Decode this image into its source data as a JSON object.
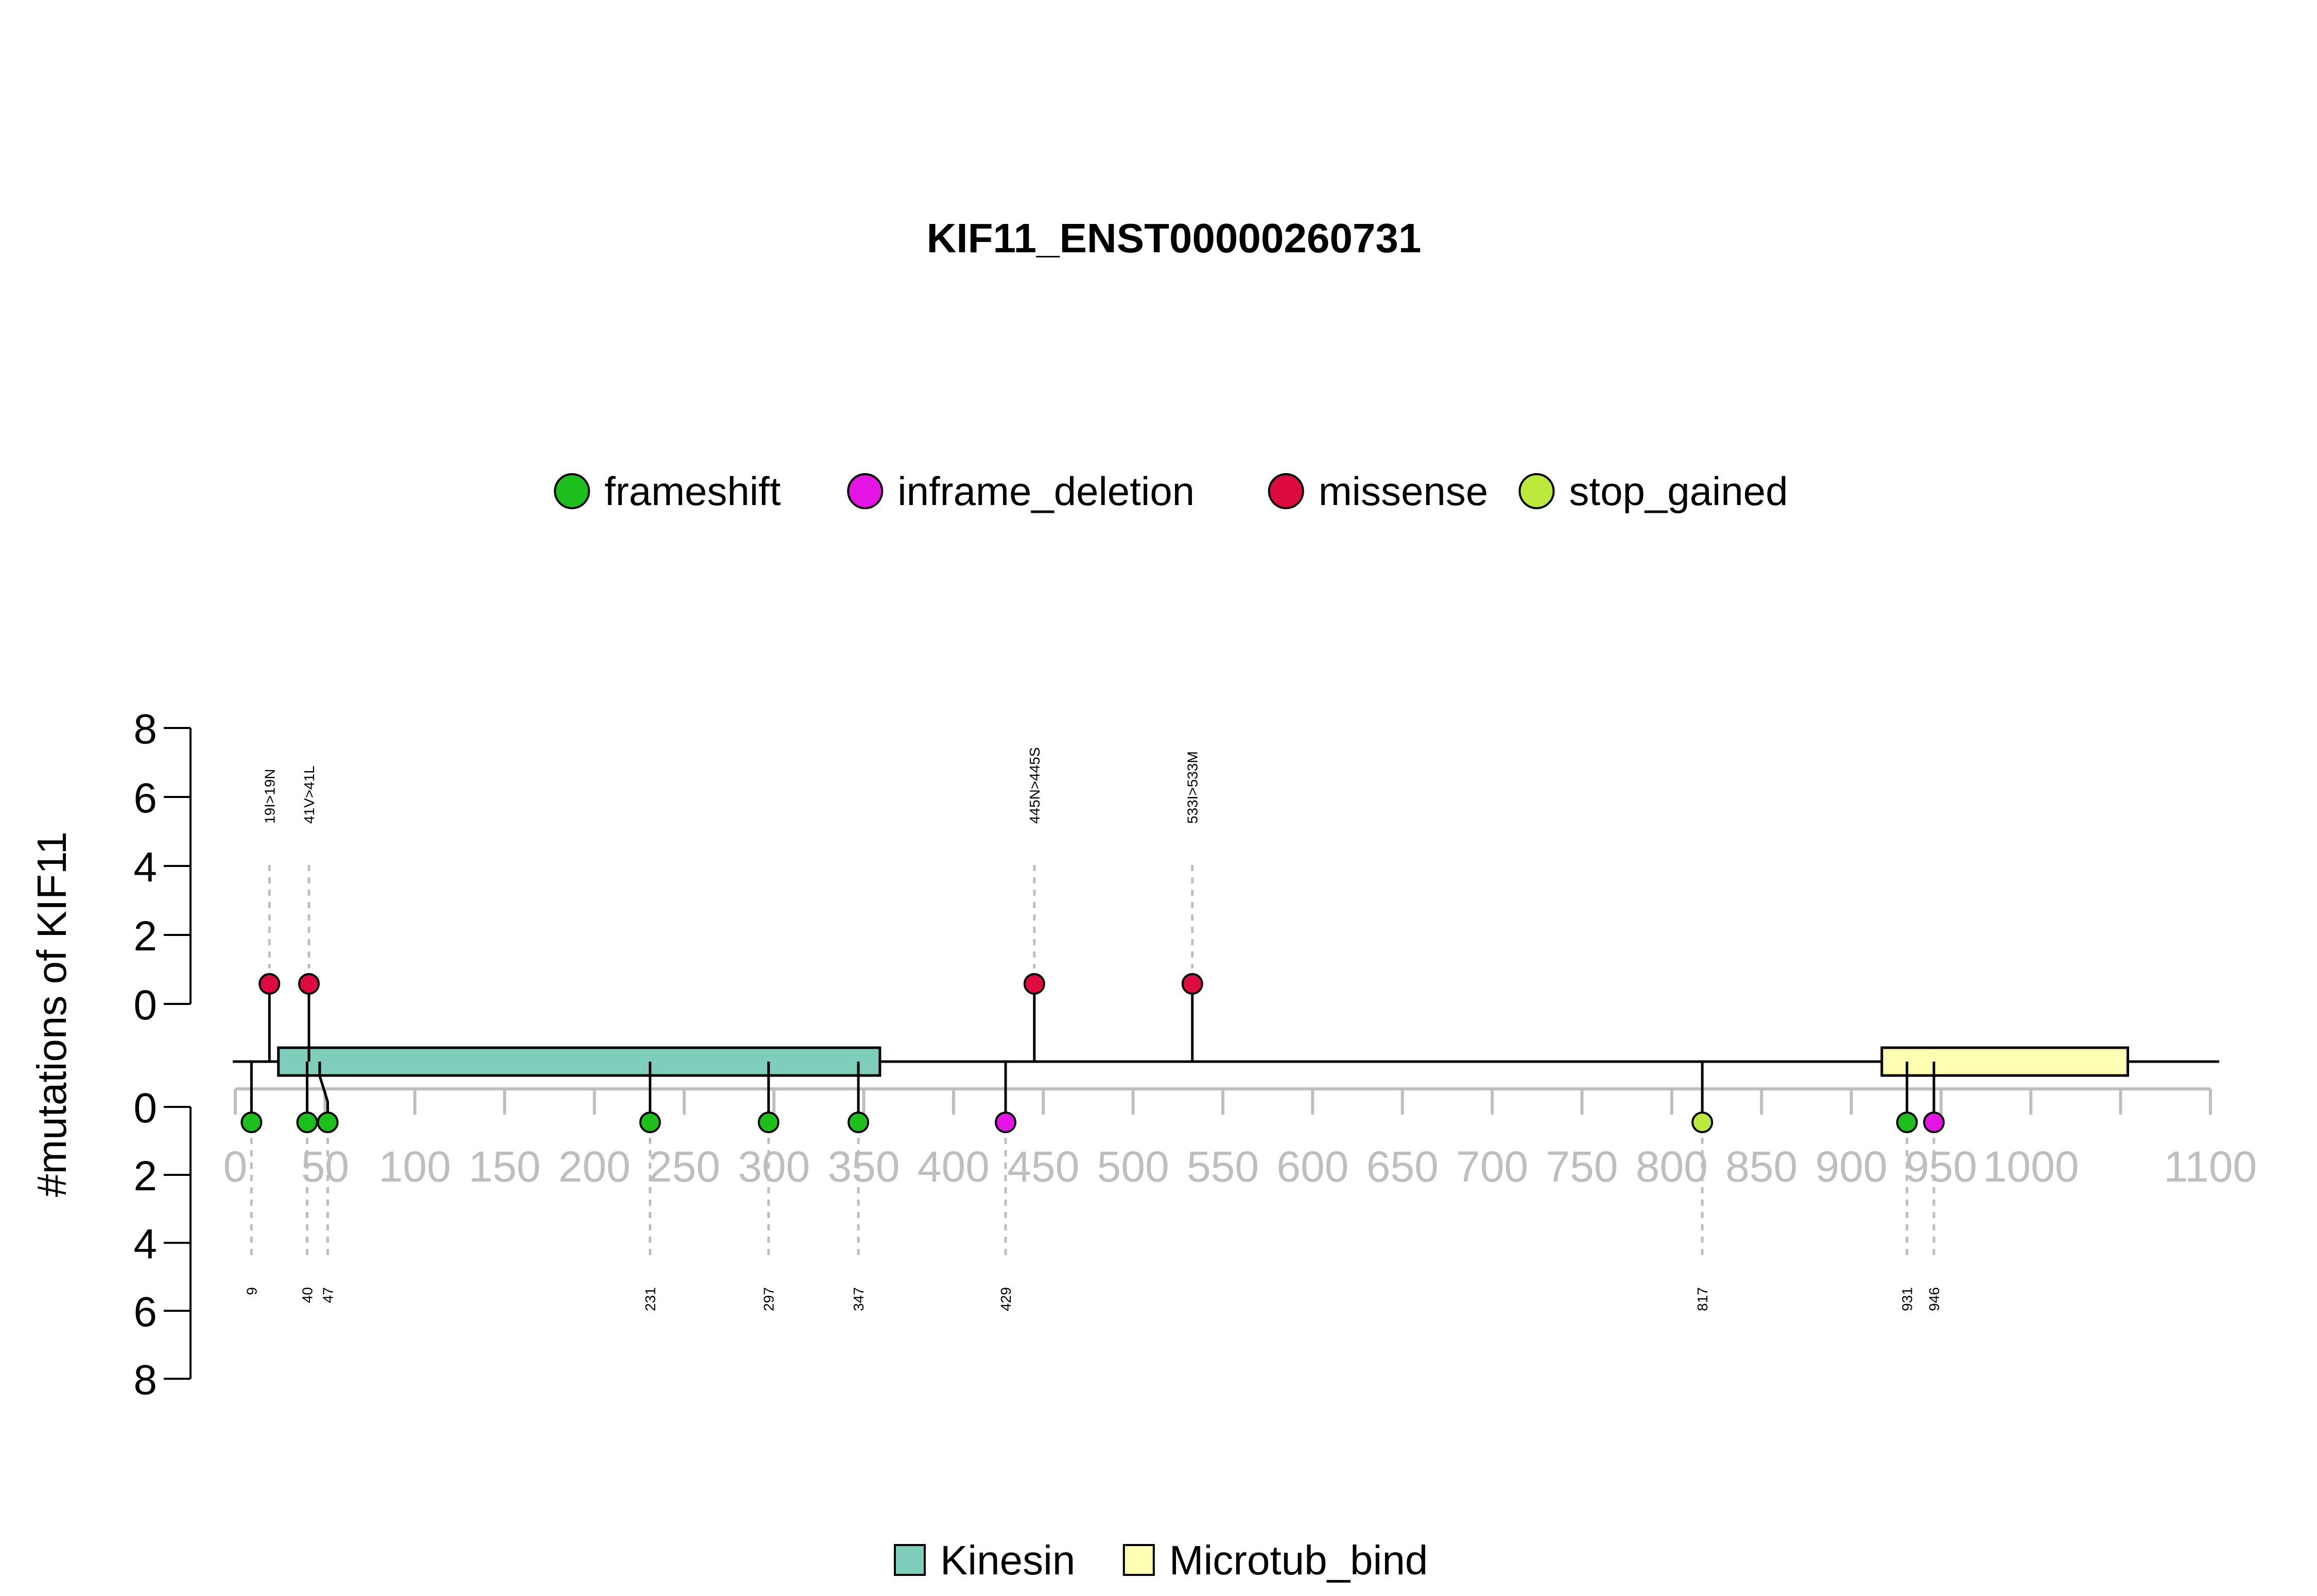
{
  "chart_data": {
    "type": "lollipop",
    "title": "KIF11_ENST00000260731",
    "ylabel": "#mutations of KIF11",
    "xlim": [
      0,
      1100
    ],
    "x_ticks": [
      0,
      50,
      100,
      150,
      200,
      250,
      300,
      350,
      400,
      450,
      500,
      550,
      600,
      650,
      700,
      750,
      800,
      850,
      900,
      950,
      1000,
      1100
    ],
    "y_ticks": [
      0,
      2,
      4,
      6,
      8
    ],
    "ylim": [
      0,
      8
    ],
    "legend_mutations": [
      {
        "name": "frameshift",
        "color": "#1DBF1D"
      },
      {
        "name": "inframe_deletion",
        "color": "#E414E4"
      },
      {
        "name": "missense",
        "color": "#DD0B3F"
      },
      {
        "name": "stop_gained",
        "color": "#BDE83C"
      }
    ],
    "legend_domains": [
      {
        "name": "Kinesin",
        "color": "#7FCDBB"
      },
      {
        "name": "Microtub_bind",
        "color": "#FFFFB3"
      }
    ],
    "domains": [
      {
        "name": "Kinesin",
        "start": 24,
        "end": 359,
        "color": "#7FCDBB"
      },
      {
        "name": "Microtub_bind",
        "start": 917,
        "end": 1054,
        "color": "#FFFFB3"
      }
    ],
    "top_mutations": [
      {
        "label": "19I>19N",
        "position": 19,
        "count": 1,
        "type": "missense"
      },
      {
        "label": "41V>41L",
        "position": 41,
        "count": 1,
        "type": "missense"
      },
      {
        "label": "445N>445S",
        "position": 445,
        "count": 1,
        "type": "missense"
      },
      {
        "label": "533I>533M",
        "position": 533,
        "count": 1,
        "type": "missense"
      }
    ],
    "bottom_mutations": [
      {
        "label": "9",
        "position": 9,
        "count": 1,
        "type": "frameshift"
      },
      {
        "label": "40",
        "position": 40,
        "count": 1,
        "type": "frameshift"
      },
      {
        "label": "47",
        "position": 47,
        "count": 1,
        "type": "frameshift"
      },
      {
        "label": "231",
        "position": 231,
        "count": 1,
        "type": "frameshift"
      },
      {
        "label": "297",
        "position": 297,
        "count": 1,
        "type": "frameshift"
      },
      {
        "label": "347",
        "position": 347,
        "count": 1,
        "type": "frameshift"
      },
      {
        "label": "429",
        "position": 429,
        "count": 1,
        "type": "inframe_deletion"
      },
      {
        "label": "817",
        "position": 817,
        "count": 1,
        "type": "stop_gained"
      },
      {
        "label": "931",
        "position": 931,
        "count": 1,
        "type": "frameshift"
      },
      {
        "label": "946",
        "position": 946,
        "count": 1,
        "type": "inframe_deletion"
      }
    ]
  }
}
